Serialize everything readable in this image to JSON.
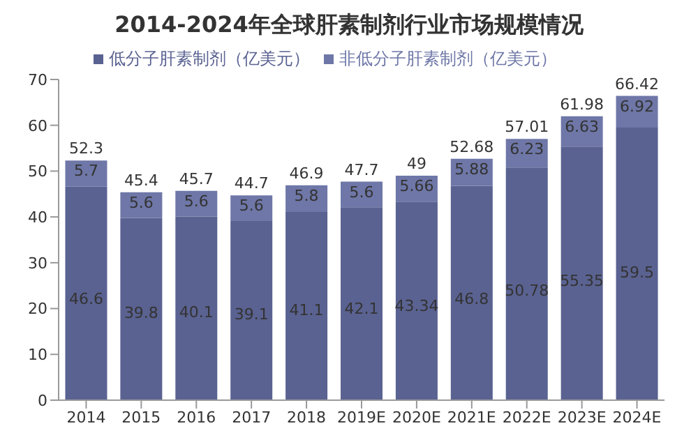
{
  "chart_data": {
    "type": "bar",
    "title": "2014-2024年全球肝素制剂行业市场规模情况",
    "categories": [
      "2014",
      "2015",
      "2016",
      "2017",
      "2018",
      "2019E",
      "2020E",
      "2021E",
      "2022E",
      "2023E",
      "2024E"
    ],
    "series": [
      {
        "name": "低分子肝素制剂（亿美元）",
        "color": "#5a6291",
        "values": [
          46.6,
          39.8,
          40.1,
          39.1,
          41.1,
          42.1,
          43.34,
          46.8,
          50.78,
          55.35,
          59.5
        ]
      },
      {
        "name": "非低分子肝素制剂（亿美元）",
        "color": "#6e77a7",
        "values": [
          5.7,
          5.6,
          5.6,
          5.6,
          5.8,
          5.6,
          5.66,
          5.88,
          6.23,
          6.63,
          6.92
        ]
      }
    ],
    "stacked": true,
    "data_labels": true,
    "totals": [
      "52.3",
      "45.4",
      "45.7",
      "44.7",
      "46.9",
      "47.7",
      "49",
      "52.68",
      "57.01",
      "61.98",
      "66.42"
    ],
    "ylim": [
      0,
      70
    ],
    "yticks": [
      0,
      10,
      20,
      30,
      40,
      50,
      60,
      70
    ],
    "grid": false,
    "legend": "top"
  }
}
